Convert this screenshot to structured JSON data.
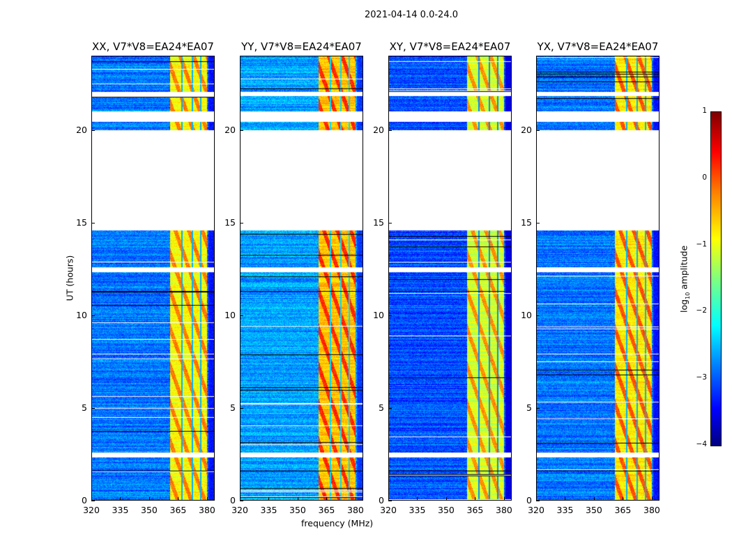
{
  "title": "2021-04-14 0.0-24.0",
  "chart_data": {
    "type": "heatmap",
    "title": "2021-04-14 0.0-24.0",
    "xlabel": "frequency (MHz)",
    "ylabel": "UT (hours)",
    "xlim": [
      320,
      384
    ],
    "ylim": [
      0,
      24
    ],
    "xticks": [
      "320",
      "335",
      "350",
      "365",
      "380"
    ],
    "xtick_values": [
      320,
      335,
      350,
      365,
      380
    ],
    "yticks": [
      "0",
      "5",
      "10",
      "15",
      "20"
    ],
    "ytick_values": [
      0,
      5,
      10,
      15,
      20
    ],
    "panels": [
      {
        "title": "XX, V7*V8=EA24*EA07",
        "band_level": -0.9,
        "bright_level": -0.3,
        "base_level": -2.8
      },
      {
        "title": "YY, V7*V8=EA24*EA07",
        "band_level": -0.6,
        "bright_level": 0.1,
        "base_level": -2.6
      },
      {
        "title": "XY, V7*V8=EA24*EA07",
        "band_level": -1.1,
        "bright_level": -0.4,
        "base_level": -3.0
      },
      {
        "title": "YX, V7*V8=EA24*EA07",
        "band_level": -0.8,
        "bright_level": -0.1,
        "base_level": -2.8
      }
    ],
    "high_amplitude_band_mhz": [
      360.5,
      380
    ],
    "flagged_time_ranges_hours": [
      [
        2.35,
        2.6
      ],
      [
        12.35,
        12.6
      ],
      [
        14.6,
        20.0
      ],
      [
        20.45,
        21.0
      ],
      [
        21.85,
        22.05
      ]
    ],
    "colorbar": {
      "label": "log₁₀ amplitude",
      "range": [
        -4,
        1
      ],
      "ticks": [
        "1",
        "0",
        "−1",
        "−2",
        "−3",
        "−4"
      ],
      "tick_values": [
        1,
        0,
        -1,
        -2,
        -3,
        -4
      ],
      "colormap": "jet"
    }
  }
}
